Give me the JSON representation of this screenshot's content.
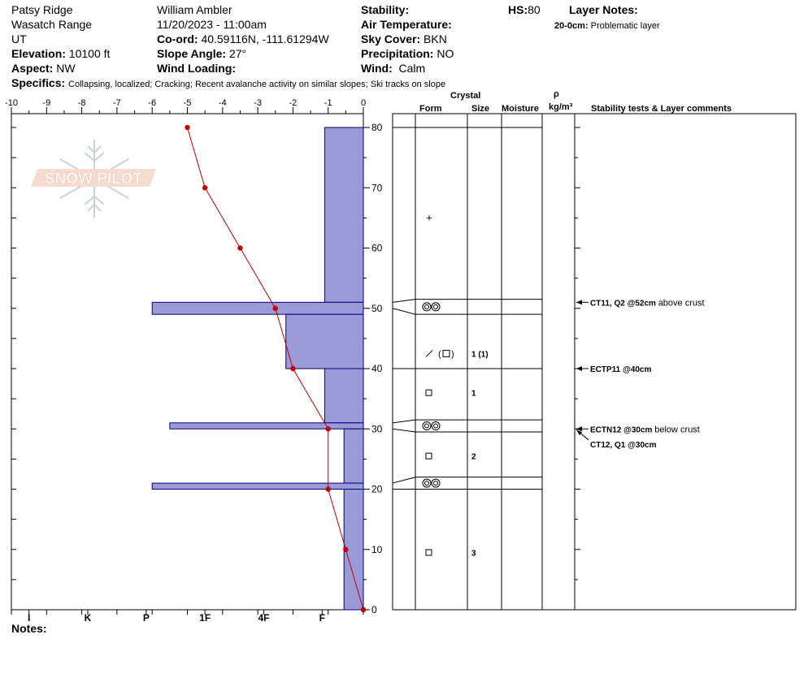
{
  "header": {
    "location": "Patsy Ridge",
    "range": "Wasatch Range",
    "state": "UT",
    "elevation_label": "Elevation:",
    "elevation_value": "10100 ft",
    "aspect_label": "Aspect:",
    "aspect_value": "NW",
    "observer": "William Ambler",
    "datetime": "11/20/2023 - 11:00am",
    "coord_label": "Co-ord:",
    "coord_value": "40.59116N, -111.61294W",
    "slope_label": "Slope Angle:",
    "slope_value": "27°",
    "wind_loading_label": "Wind Loading:",
    "wind_loading_value": "",
    "stability_label": "Stability:",
    "stability_value": "",
    "air_temp_label": "Air Temperature:",
    "air_temp_value": "",
    "sky_label": "Sky Cover:",
    "sky_value": "BKN",
    "precip_label": "Precipitation:",
    "precip_value": "NO",
    "wind_label": "Wind:",
    "wind_value": "Calm",
    "hs_label": "HS:",
    "hs_value": "80",
    "layer_notes_label": "Layer Notes:",
    "layer_note_depth": "20-0cm:",
    "layer_note_text": "Problematic layer",
    "specifics_label": "Specifics:",
    "specifics_value": "Collapsing, localized;  Cracking;  Recent avalanche activity on similar slopes;  Ski tracks on slope",
    "notes_label": "Notes:"
  },
  "logo_text": "SNOW PILOT",
  "columns": {
    "crystal": "Crystal",
    "form": "Form",
    "size": "Size",
    "moisture": "Moisture",
    "rho": "ρ",
    "density_unit": "kg/m³",
    "stability_comments": "Stability tests & Layer comments"
  },
  "colors": {
    "hardness_fill": "#9a9ad6",
    "hardness_stroke": "#000080",
    "temp_line": "#c00000"
  },
  "chart_data": {
    "type": "snow-profile",
    "temp_axis": {
      "ticks": [
        -10,
        -9,
        -8,
        -7,
        -6,
        -5,
        -4,
        -3,
        -2,
        -1,
        0
      ],
      "range": [
        -10,
        0
      ]
    },
    "height_axis": {
      "ticks": [
        0,
        10,
        20,
        30,
        40,
        50,
        60,
        70,
        80
      ],
      "range": [
        0,
        80
      ]
    },
    "hardness_axis": {
      "labels": [
        "I",
        "K",
        "P",
        "1F",
        "4F",
        "F"
      ]
    },
    "temperature_profile": [
      {
        "height": 80,
        "temp": -5.0
      },
      {
        "height": 70,
        "temp": -4.5
      },
      {
        "height": 60,
        "temp": -3.5
      },
      {
        "height": 50,
        "temp": -2.5
      },
      {
        "height": 40,
        "temp": -2.0
      },
      {
        "height": 30,
        "temp": -1.0
      },
      {
        "height": 20,
        "temp": -1.0
      },
      {
        "height": 10,
        "temp": -0.5
      },
      {
        "height": 0,
        "temp": 0.0
      }
    ],
    "layers": [
      {
        "top": 80,
        "bottom": 51,
        "hardness_temp_scale": -1.1
      },
      {
        "top": 51,
        "bottom": 49,
        "hardness_temp_scale": -6.0
      },
      {
        "top": 49,
        "bottom": 40,
        "hardness_temp_scale": -2.2
      },
      {
        "top": 40,
        "bottom": 31,
        "hardness_temp_scale": -1.1
      },
      {
        "top": 31,
        "bottom": 30,
        "hardness_temp_scale": -5.5
      },
      {
        "top": 30,
        "bottom": 21,
        "hardness_temp_scale": -0.55
      },
      {
        "top": 21,
        "bottom": 20,
        "hardness_temp_scale": -6.0
      },
      {
        "top": 20,
        "bottom": 0,
        "hardness_temp_scale": -0.55
      }
    ],
    "strat_layers": [
      {
        "top": 80,
        "bottom": 51.5,
        "form": "+",
        "size": ""
      },
      {
        "top": 51.5,
        "bottom": 49,
        "form": "crust",
        "size": ""
      },
      {
        "top": 49,
        "bottom": 40,
        "form": "facet-mixed",
        "size": "1 (1)"
      },
      {
        "top": 40,
        "bottom": 31.5,
        "form": "square",
        "size": "1"
      },
      {
        "top": 31.5,
        "bottom": 29.5,
        "form": "crust",
        "size": ""
      },
      {
        "top": 29.5,
        "bottom": 22,
        "form": "square",
        "size": "2"
      },
      {
        "top": 22,
        "bottom": 20,
        "form": "crust",
        "size": ""
      },
      {
        "top": 20,
        "bottom": 0,
        "form": "square",
        "size": "3"
      }
    ],
    "stability_tests": [
      {
        "height": 52,
        "label": "CT11, Q2 @52cm",
        "comment": "above crust"
      },
      {
        "height": 40,
        "label": "ECTP11 @40cm",
        "comment": ""
      },
      {
        "height": 30,
        "label": "ECTN12 @30cm",
        "comment": "below crust"
      },
      {
        "height": 30,
        "label": "CT12, Q1 @30cm",
        "comment": ""
      }
    ]
  }
}
